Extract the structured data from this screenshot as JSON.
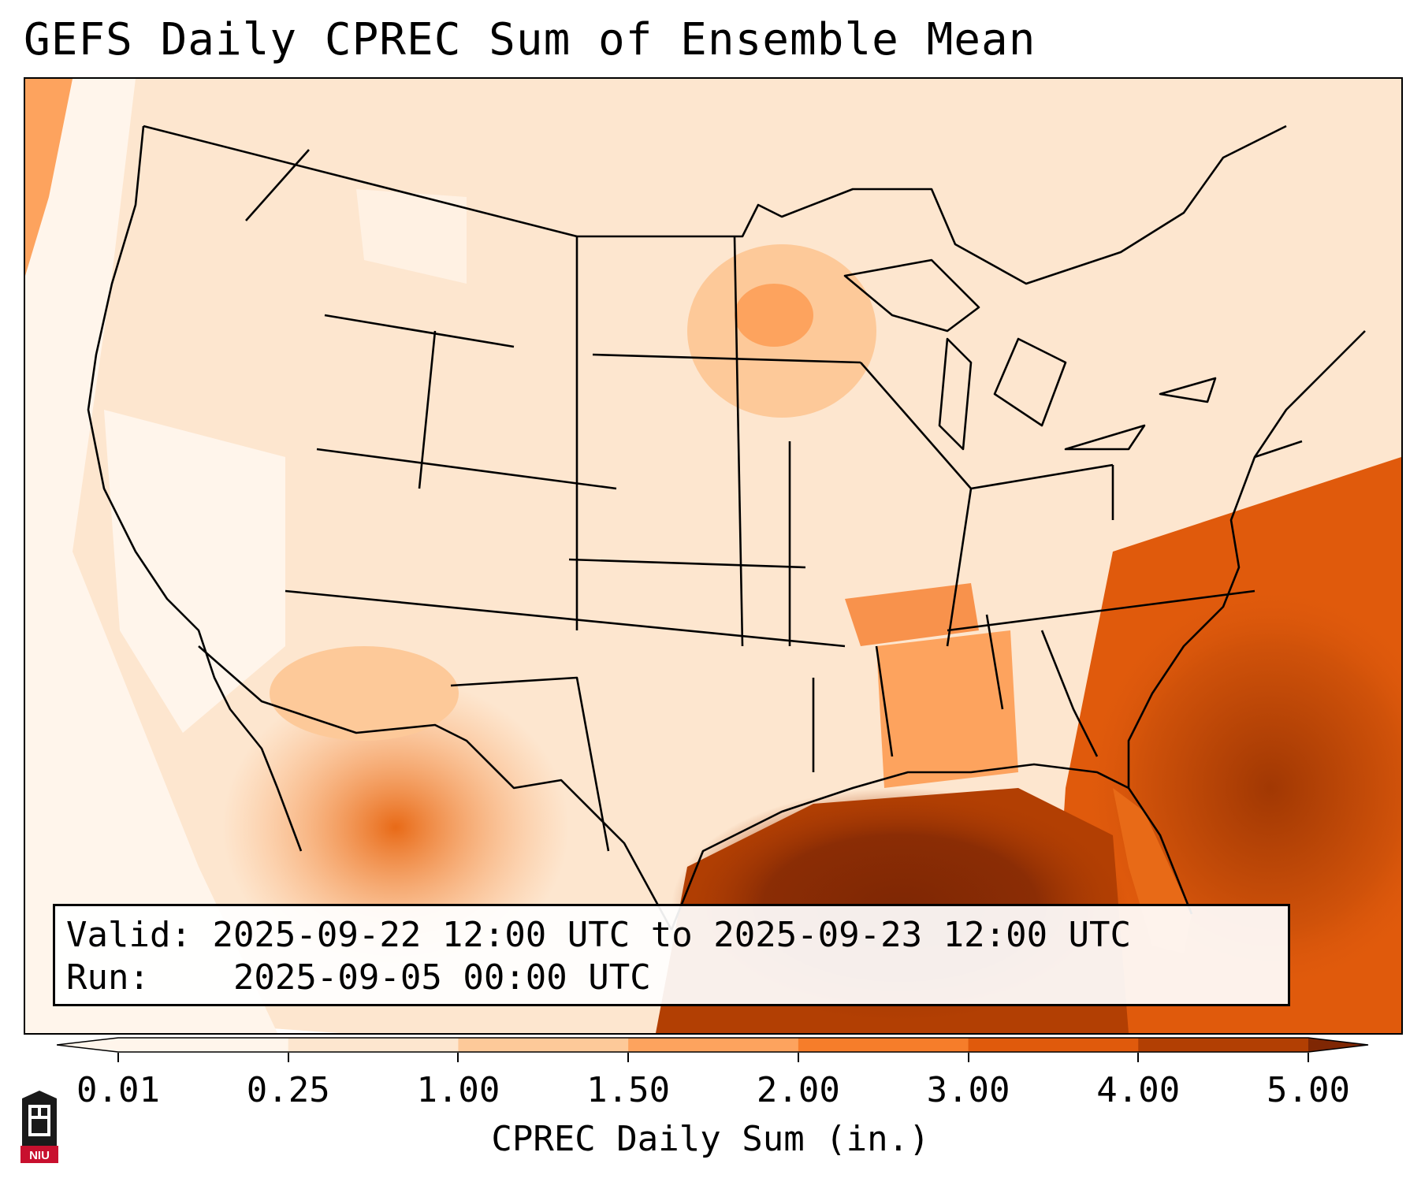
{
  "title": "GEFS Daily CPREC Sum of Ensemble Mean",
  "info": {
    "valid_label": "Valid:",
    "valid_value": "2025-09-22 12:00 UTC to 2025-09-23 12:00 UTC",
    "run_label": "Run:",
    "run_value": "2025-09-05 00:00 UTC"
  },
  "colorbar": {
    "label": "CPREC Daily Sum (in.)",
    "ticks": [
      "0.01",
      "0.25",
      "1.00",
      "1.50",
      "2.00",
      "3.00",
      "4.00",
      "5.00"
    ],
    "colors": [
      "#fff5eb",
      "#fde6cf",
      "#fdc999",
      "#fda35e",
      "#f67d2a",
      "#e05a0c",
      "#b23f03",
      "#7f2704"
    ]
  },
  "logo": {
    "text": "NIU",
    "icon": "niu-logo-icon"
  }
}
